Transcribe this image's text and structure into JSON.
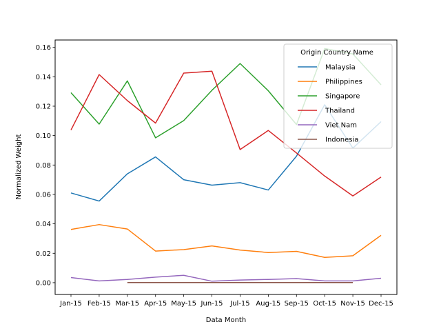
{
  "chart_data": {
    "type": "line",
    "title": "",
    "xlabel": "Data Month",
    "ylabel": "Normalized Weight",
    "categories": [
      "Jan-15",
      "Feb-15",
      "Mar-15",
      "Apr-15",
      "May-15",
      "Jun-15",
      "Jul-15",
      "Aug-15",
      "Sep-15",
      "Oct-15",
      "Nov-15",
      "Dec-15"
    ],
    "ylim": [
      -0.008,
      0.165
    ],
    "yticks": [
      0.0,
      0.02,
      0.04,
      0.06,
      0.08,
      0.1,
      0.12,
      0.14,
      0.16
    ],
    "ytick_labels": [
      "0.00",
      "0.02",
      "0.04",
      "0.06",
      "0.08",
      "0.10",
      "0.12",
      "0.14",
      "0.16"
    ],
    "grid": false,
    "legend": {
      "title": "Origin Country Name",
      "placement": "top-right"
    },
    "series": [
      {
        "name": "Malaysia",
        "color": "#1f77b4",
        "values": [
          0.061,
          0.0555,
          0.074,
          0.0855,
          0.07,
          0.0663,
          0.068,
          0.063,
          0.086,
          0.121,
          0.0915,
          0.1095
        ]
      },
      {
        "name": "Philippines",
        "color": "#ff7f0e",
        "values": [
          0.0362,
          0.0395,
          0.0365,
          0.0215,
          0.0225,
          0.025,
          0.0222,
          0.0205,
          0.0213,
          0.0172,
          0.0183,
          0.0322
        ]
      },
      {
        "name": "Singapore",
        "color": "#2ca02c",
        "values": [
          0.1292,
          0.1078,
          0.1372,
          0.0985,
          0.1102,
          0.1308,
          0.149,
          0.1305,
          0.1075,
          0.1592,
          0.1555,
          0.1345
        ]
      },
      {
        "name": "Thailand",
        "color": "#d62728",
        "values": [
          0.1038,
          0.1415,
          0.1238,
          0.1085,
          0.1425,
          0.1438,
          0.0905,
          0.1035,
          0.0882,
          0.0725,
          0.059,
          0.0718
        ]
      },
      {
        "name": "Viet Nam",
        "color": "#9467bd",
        "values": [
          0.0035,
          0.0012,
          0.0022,
          0.0038,
          0.005,
          0.001,
          0.0018,
          0.0022,
          0.0028,
          0.0012,
          0.0012,
          0.003
        ]
      },
      {
        "name": "Indonesia",
        "color": "#8c564b",
        "values": [
          null,
          null,
          0.0001,
          0.0001,
          0.0001,
          0.0001,
          0.0001,
          0.0001,
          0.0001,
          0.0001,
          0.0001,
          null
        ]
      }
    ]
  }
}
